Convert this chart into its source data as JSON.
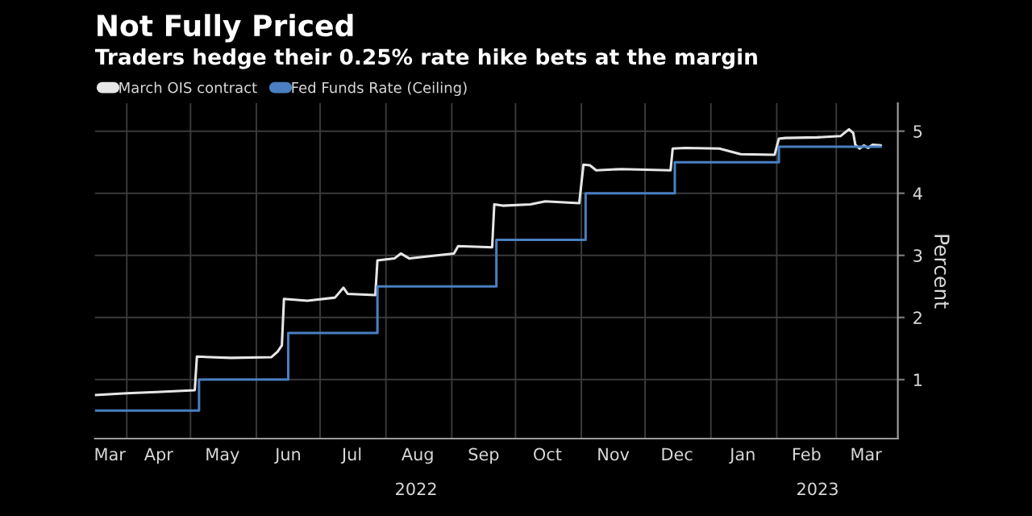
{
  "chart_data": {
    "type": "line",
    "title": "Not Fully Priced",
    "subtitle": "Traders hedge their 0.25% rate hike bets at the margin",
    "ylabel": "Percent",
    "xlim": [
      "2022-03-17",
      "2023-03-30"
    ],
    "ylim": [
      0.05,
      5.45
    ],
    "yticks": [
      1,
      2,
      3,
      4,
      5
    ],
    "xticks": [
      {
        "value": "2022-04-01",
        "label": null
      },
      {
        "value": "2022-05-01",
        "label": null
      },
      {
        "value": "2022-06-01",
        "label": null
      },
      {
        "value": "2022-07-01",
        "label": null
      },
      {
        "value": "2022-08-01",
        "label": null
      },
      {
        "value": "2022-09-01",
        "label": null
      },
      {
        "value": "2022-10-01",
        "label": null
      },
      {
        "value": "2022-11-01",
        "label": null
      },
      {
        "value": "2022-12-01",
        "label": null
      },
      {
        "value": "2023-01-01",
        "label": null
      },
      {
        "value": "2023-02-01",
        "label": null
      },
      {
        "value": "2023-03-01",
        "label": null
      },
      {
        "value": "2022-03-24",
        "label": "Mar"
      },
      {
        "value": "2022-04-16",
        "label": "Apr"
      },
      {
        "value": "2022-05-16",
        "label": "May"
      },
      {
        "value": "2022-06-16",
        "label": "Jun"
      },
      {
        "value": "2022-07-16",
        "label": "Jul"
      },
      {
        "value": "2022-08-16",
        "label": "Aug"
      },
      {
        "value": "2022-09-16",
        "label": "Sep"
      },
      {
        "value": "2022-10-16",
        "label": "Oct"
      },
      {
        "value": "2022-11-16",
        "label": "Nov"
      },
      {
        "value": "2022-12-16",
        "label": "Dec"
      },
      {
        "value": "2023-01-16",
        "label": "Jan"
      },
      {
        "value": "2023-02-15",
        "label": "Feb"
      },
      {
        "value": "2023-03-15",
        "label": "Mar"
      }
    ],
    "annotations": [
      "2022",
      "2023"
    ],
    "grid": true,
    "legend": "top left",
    "series": [
      {
        "name": "March OIS contract",
        "color": "#e6e6e6",
        "x": [
          "2022-03-17",
          "2022-04-01",
          "2022-04-15",
          "2022-05-03",
          "2022-05-04",
          "2022-05-20",
          "2022-06-08",
          "2022-06-11",
          "2022-06-13",
          "2022-06-14",
          "2022-06-25",
          "2022-07-08",
          "2022-07-12",
          "2022-07-14",
          "2022-07-27",
          "2022-07-28",
          "2022-08-05",
          "2022-08-08",
          "2022-08-12",
          "2022-08-25",
          "2022-09-02",
          "2022-09-04",
          "2022-09-20",
          "2022-09-21",
          "2022-09-25",
          "2022-10-08",
          "2022-10-15",
          "2022-10-31",
          "2022-11-02",
          "2022-11-05",
          "2022-11-08",
          "2022-11-20",
          "2022-12-13",
          "2022-12-14",
          "2022-12-20",
          "2023-01-05",
          "2023-01-15",
          "2023-01-31",
          "2023-02-02",
          "2023-02-05",
          "2023-02-20",
          "2023-03-03",
          "2023-03-07",
          "2023-03-09",
          "2023-03-10",
          "2023-03-12",
          "2023-03-14",
          "2023-03-16",
          "2023-03-18",
          "2023-03-22"
        ],
        "values": [
          0.75,
          0.78,
          0.8,
          0.83,
          1.37,
          1.35,
          1.36,
          1.45,
          1.55,
          2.3,
          2.27,
          2.32,
          2.48,
          2.38,
          2.36,
          2.92,
          2.95,
          3.03,
          2.95,
          3.0,
          3.03,
          3.15,
          3.13,
          3.82,
          3.8,
          3.82,
          3.87,
          3.84,
          4.46,
          4.45,
          4.37,
          4.39,
          4.37,
          4.72,
          4.73,
          4.72,
          4.63,
          4.62,
          4.88,
          4.89,
          4.9,
          4.92,
          5.03,
          4.97,
          4.78,
          4.72,
          4.77,
          4.73,
          4.78,
          4.77
        ]
      },
      {
        "name": "Fed Funds Rate (Ceiling)",
        "color": "#4a7fc1",
        "type": "step",
        "x": [
          "2022-03-17",
          "2022-05-05",
          "2022-06-16",
          "2022-07-28",
          "2022-09-22",
          "2022-11-03",
          "2022-12-15",
          "2023-02-02",
          "2023-03-22"
        ],
        "values": [
          0.5,
          1.0,
          1.75,
          2.5,
          3.25,
          4.0,
          4.5,
          4.75,
          4.75
        ]
      }
    ]
  }
}
